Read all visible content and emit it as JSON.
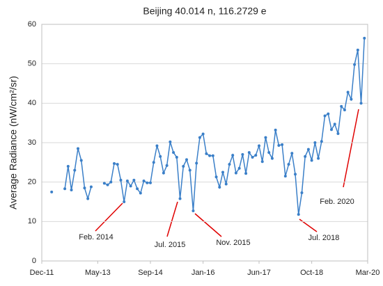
{
  "chart_data": {
    "type": "line",
    "title": "Beijing 40.014 n, 116.2729 e",
    "y_label": "Average Radiance (nW/cm²/sr)",
    "x": [
      "2012-03",
      "2012-04",
      "2012-05",
      "2012-06",
      "2012-07",
      "2012-08",
      "2012-09",
      "2012-10",
      "2012-11",
      "2012-12",
      "2013-01",
      "2013-02",
      "2013-03",
      "2013-04",
      "2013-05",
      "2013-06",
      "2013-07",
      "2013-08",
      "2013-09",
      "2013-10",
      "2013-11",
      "2013-12",
      "2014-01",
      "2014-02",
      "2014-03",
      "2014-04",
      "2014-05",
      "2014-06",
      "2014-07",
      "2014-08",
      "2014-09",
      "2014-10",
      "2014-11",
      "2014-12",
      "2015-01",
      "2015-02",
      "2015-03",
      "2015-04",
      "2015-05",
      "2015-06",
      "2015-07",
      "2015-08",
      "2015-09",
      "2015-10",
      "2015-11",
      "2015-12",
      "2016-01",
      "2016-02",
      "2016-03",
      "2016-04",
      "2016-05",
      "2016-06",
      "2016-07",
      "2016-08",
      "2016-09",
      "2016-10",
      "2016-11",
      "2016-12",
      "2017-01",
      "2017-02",
      "2017-03",
      "2017-04",
      "2017-05",
      "2017-06",
      "2017-07",
      "2017-08",
      "2017-09",
      "2017-10",
      "2017-11",
      "2017-12",
      "2018-01",
      "2018-02",
      "2018-03",
      "2018-04",
      "2018-05",
      "2018-06",
      "2018-07",
      "2018-08",
      "2018-09",
      "2018-10",
      "2018-11",
      "2018-12",
      "2019-01",
      "2019-02",
      "2019-03",
      "2019-04",
      "2019-05",
      "2019-06",
      "2019-07",
      "2019-08",
      "2019-09",
      "2019-10",
      "2019-11",
      "2019-12",
      "2020-01",
      "2020-02"
    ],
    "series": [
      {
        "name": "Average Radiance",
        "color": "#3a7fc8",
        "values": [
          17.5,
          null,
          null,
          null,
          18.3,
          24,
          18,
          23,
          28.5,
          25.5,
          18.5,
          15.8,
          18.8,
          null,
          null,
          null,
          19.7,
          19.3,
          20,
          24.7,
          24.5,
          20.5,
          15,
          20.3,
          19,
          20.5,
          18.3,
          17.2,
          20.3,
          19.8,
          19.8,
          25,
          29.2,
          26.5,
          22.3,
          24.2,
          30.2,
          27.5,
          26.3,
          15.8,
          24,
          25.7,
          23,
          12.7,
          24.8,
          31.3,
          32.2,
          27.2,
          26.7,
          26.7,
          21.3,
          18.7,
          22.5,
          19.5,
          24.5,
          26.8,
          22.3,
          23.5,
          27,
          22.2,
          27.5,
          26.3,
          26.8,
          29.2,
          25.2,
          31.3,
          27.5,
          26,
          33.2,
          29.3,
          29.5,
          21.5,
          24.5,
          27.3,
          22,
          11.8,
          17.3,
          26.5,
          28.3,
          25.5,
          30,
          26,
          30.3,
          36.8,
          37.3,
          33.3,
          34.7,
          32.3,
          39.2,
          38.3,
          42.8,
          41,
          49.8,
          53.5,
          40,
          56.5
        ]
      }
    ],
    "xlim": [
      "2011-12",
      "2020-03"
    ],
    "xticks": [
      {
        "value": "2011-12",
        "label": "Dec-11"
      },
      {
        "value": "2013-05",
        "label": "May-13"
      },
      {
        "value": "2014-09",
        "label": "Sep-14"
      },
      {
        "value": "2016-01",
        "label": "Jan-16"
      },
      {
        "value": "2017-06",
        "label": "Jun-17"
      },
      {
        "value": "2018-10",
        "label": "Oct-18"
      },
      {
        "value": "2020-03",
        "label": "Mar-20"
      }
    ],
    "ylim": [
      0,
      60
    ],
    "yticks": [
      0,
      10,
      20,
      30,
      40,
      50,
      60
    ],
    "grid": true,
    "annotations": [
      "Feb. 2014",
      "Jul. 2015",
      "Nov. 2015",
      "Jul. 2018",
      "Feb. 2020"
    ]
  }
}
